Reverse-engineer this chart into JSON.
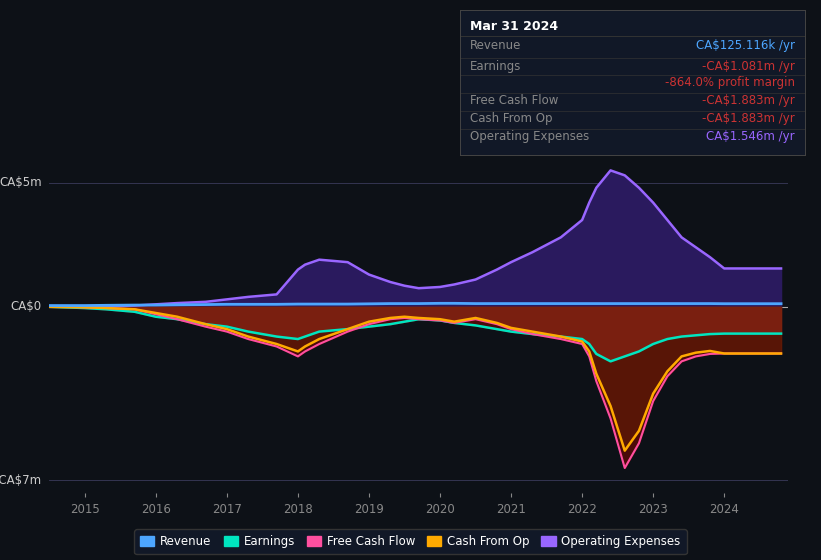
{
  "bg_color": "#0d1117",
  "plot_bg": "#0d1117",
  "y_label_top": "CA$5m",
  "y_label_zero": "CA$0",
  "y_label_bot": "-CA$7m",
  "x_ticks": [
    2015,
    2016,
    2017,
    2018,
    2019,
    2020,
    2021,
    2022,
    2023,
    2024
  ],
  "ylim": [
    -7.5,
    6.5
  ],
  "xlim": [
    2014.5,
    2024.9
  ],
  "colors": {
    "revenue": "#4da6ff",
    "earnings": "#00e5c0",
    "free_cash_flow": "#ff4fa0",
    "cash_from_op": "#ffaa00",
    "op_expenses": "#9966ff"
  },
  "legend": [
    {
      "label": "Revenue",
      "color": "#4da6ff"
    },
    {
      "label": "Earnings",
      "color": "#00e5c0"
    },
    {
      "label": "Free Cash Flow",
      "color": "#ff4fa0"
    },
    {
      "label": "Cash From Op",
      "color": "#ffaa00"
    },
    {
      "label": "Operating Expenses",
      "color": "#9966ff"
    }
  ],
  "infobox": {
    "title": "Mar 31 2024",
    "rows": [
      {
        "label": "Revenue",
        "value": "CA$125.116k /yr",
        "value_color": "#4da6ff"
      },
      {
        "label": "Earnings",
        "value": "-CA$1.081m /yr",
        "value_color": "#cc3333"
      },
      {
        "label": "",
        "value": "-864.0% profit margin",
        "value_color": "#cc3333"
      },
      {
        "label": "Free Cash Flow",
        "value": "-CA$1.883m /yr",
        "value_color": "#cc3333"
      },
      {
        "label": "Cash From Op",
        "value": "-CA$1.883m /yr",
        "value_color": "#cc3333"
      },
      {
        "label": "Operating Expenses",
        "value": "CA$1.546m /yr",
        "value_color": "#9966ff"
      }
    ]
  },
  "series": {
    "years": [
      2014.5,
      2015.0,
      2015.3,
      2015.7,
      2016.0,
      2016.3,
      2016.7,
      2017.0,
      2017.3,
      2017.7,
      2018.0,
      2018.1,
      2018.3,
      2018.7,
      2019.0,
      2019.3,
      2019.5,
      2019.7,
      2020.0,
      2020.2,
      2020.5,
      2020.8,
      2021.0,
      2021.3,
      2021.7,
      2022.0,
      2022.1,
      2022.2,
      2022.4,
      2022.6,
      2022.8,
      2023.0,
      2023.2,
      2023.4,
      2023.6,
      2023.8,
      2024.0,
      2024.3,
      2024.8
    ],
    "revenue": [
      0.05,
      0.05,
      0.06,
      0.07,
      0.07,
      0.08,
      0.09,
      0.1,
      0.1,
      0.1,
      0.11,
      0.11,
      0.11,
      0.11,
      0.12,
      0.13,
      0.13,
      0.13,
      0.14,
      0.14,
      0.13,
      0.13,
      0.13,
      0.13,
      0.13,
      0.13,
      0.13,
      0.13,
      0.13,
      0.13,
      0.13,
      0.13,
      0.13,
      0.13,
      0.13,
      0.13,
      0.125,
      0.125,
      0.125
    ],
    "earnings": [
      0.0,
      -0.05,
      -0.1,
      -0.2,
      -0.4,
      -0.5,
      -0.7,
      -0.8,
      -1.0,
      -1.2,
      -1.3,
      -1.2,
      -1.0,
      -0.9,
      -0.8,
      -0.7,
      -0.6,
      -0.5,
      -0.55,
      -0.65,
      -0.75,
      -0.9,
      -1.0,
      -1.1,
      -1.2,
      -1.3,
      -1.5,
      -1.9,
      -2.2,
      -2.0,
      -1.8,
      -1.5,
      -1.3,
      -1.2,
      -1.15,
      -1.1,
      -1.081,
      -1.081,
      -1.081
    ],
    "free_cash_flow": [
      0.0,
      -0.02,
      -0.05,
      -0.1,
      -0.3,
      -0.5,
      -0.8,
      -1.0,
      -1.3,
      -1.6,
      -2.0,
      -1.8,
      -1.5,
      -1.0,
      -0.7,
      -0.5,
      -0.45,
      -0.5,
      -0.55,
      -0.65,
      -0.5,
      -0.7,
      -0.9,
      -1.1,
      -1.3,
      -1.5,
      -2.0,
      -3.0,
      -4.5,
      -6.5,
      -5.5,
      -3.8,
      -2.8,
      -2.2,
      -2.0,
      -1.9,
      -1.883,
      -1.883,
      -1.883
    ],
    "cash_from_op": [
      0.0,
      -0.02,
      -0.05,
      -0.1,
      -0.25,
      -0.4,
      -0.7,
      -0.9,
      -1.2,
      -1.5,
      -1.8,
      -1.6,
      -1.3,
      -0.9,
      -0.6,
      -0.45,
      -0.4,
      -0.45,
      -0.5,
      -0.6,
      -0.45,
      -0.65,
      -0.85,
      -1.0,
      -1.2,
      -1.4,
      -1.8,
      -2.7,
      -4.0,
      -5.8,
      -5.0,
      -3.5,
      -2.6,
      -2.0,
      -1.85,
      -1.78,
      -1.883,
      -1.883,
      -1.883
    ],
    "op_expenses": [
      0.0,
      0.0,
      0.02,
      0.05,
      0.1,
      0.15,
      0.2,
      0.3,
      0.4,
      0.5,
      1.5,
      1.7,
      1.9,
      1.8,
      1.3,
      1.0,
      0.85,
      0.75,
      0.8,
      0.9,
      1.1,
      1.5,
      1.8,
      2.2,
      2.8,
      3.5,
      4.2,
      4.8,
      5.5,
      5.3,
      4.8,
      4.2,
      3.5,
      2.8,
      2.4,
      2.0,
      1.546,
      1.546,
      1.546
    ]
  }
}
